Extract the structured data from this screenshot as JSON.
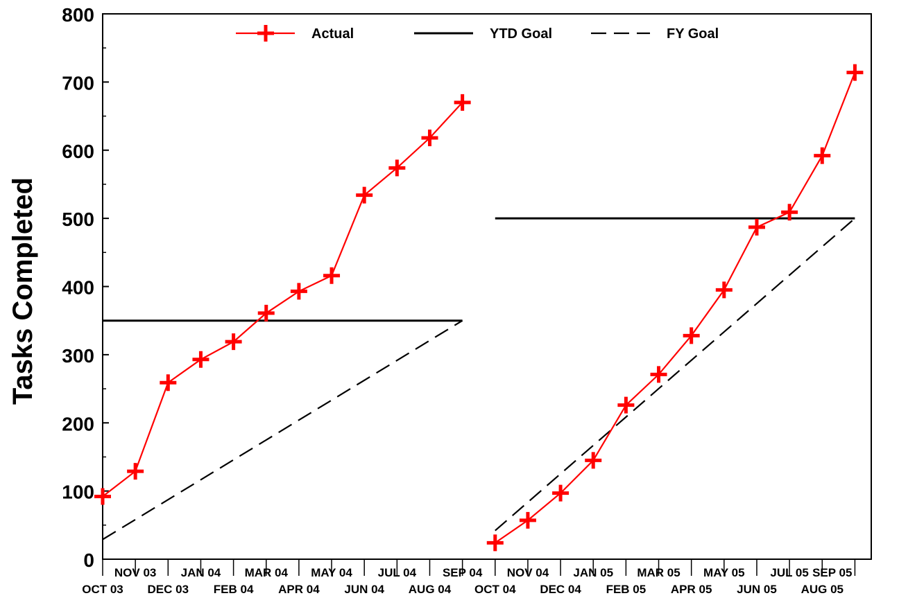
{
  "chart_data": {
    "type": "line",
    "ylabel": "Tasks Completed",
    "ylim": [
      0,
      800
    ],
    "yticks": [
      0,
      100,
      200,
      300,
      400,
      500,
      600,
      700,
      800
    ],
    "grid": false,
    "legend_position": "top",
    "categories": [
      "OCT 03",
      "NOV 03",
      "DEC 03",
      "JAN 04",
      "FEB 04",
      "MAR 04",
      "APR 04",
      "MAY 04",
      "JUN 04",
      "JUL 04",
      "AUG 04",
      "SEP 04",
      "OCT 04",
      "NOV 04",
      "DEC 04",
      "JAN 05",
      "FEB 05",
      "MAR 05",
      "APR 05",
      "MAY 05",
      "JUN 05",
      "JUL 05",
      "AUG 05",
      "SEP 05"
    ],
    "series": [
      {
        "name": "Actual",
        "color": "#ff0000",
        "style": "solid-with-plus-markers",
        "segments": [
          {
            "x": [
              "OCT 03",
              "NOV 03",
              "DEC 03",
              "JAN 04",
              "FEB 04",
              "MAR 04",
              "APR 04",
              "MAY 04",
              "JUN 04",
              "JUL 04",
              "AUG 04",
              "SEP 04"
            ],
            "values": [
              92,
              129,
              259,
              293,
              319,
              361,
              393,
              416,
              534,
              574,
              618,
              670
            ]
          },
          {
            "x": [
              "OCT 04",
              "NOV 04",
              "DEC 04",
              "JAN 05",
              "FEB 05",
              "MAR 05",
              "APR 05",
              "MAY 05",
              "JUN 05",
              "JUL 05",
              "AUG 05",
              "SEP 05"
            ],
            "values": [
              24,
              57,
              97,
              145,
              226,
              271,
              328,
              395,
              487,
              509,
              592,
              714
            ]
          }
        ]
      },
      {
        "name": "YTD Goal",
        "color": "#000000",
        "style": "solid",
        "segments": [
          {
            "x": [
              "OCT 03",
              "SEP 04"
            ],
            "values": [
              350,
              350
            ]
          },
          {
            "x": [
              "OCT 04",
              "SEP 05"
            ],
            "values": [
              500,
              500
            ]
          }
        ]
      },
      {
        "name": "FY Goal",
        "color": "#000000",
        "style": "dashed",
        "segments": [
          {
            "x": [
              "OCT 03",
              "SEP 04"
            ],
            "values": [
              29,
              350
            ]
          },
          {
            "x": [
              "OCT 04",
              "SEP 05"
            ],
            "values": [
              42,
              500
            ]
          }
        ]
      }
    ]
  }
}
